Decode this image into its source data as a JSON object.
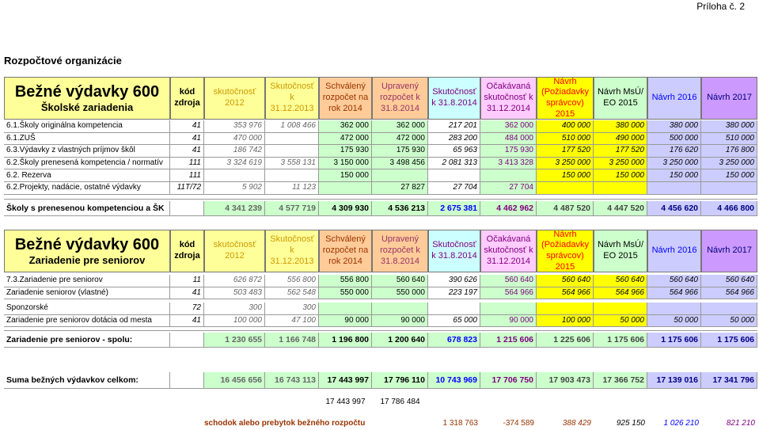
{
  "header": {
    "annex": "Príloha č. 2",
    "section": "Rozpočtové organizácie"
  },
  "columns": [
    "kód zdroja",
    "skutočnosť 2012",
    "Skutočnosť k 31.12.2013",
    "Schválený rozpočet na rok 2014",
    "Upravený rozpočet k 31.8.2014",
    "Skutočnosť k 31.8.2014",
    "Očakávaná skutočnosť k 31.12.2014",
    "Návrh (Požiadavky správcov) 2015",
    "Návrh MsÚ/ EO 2015",
    "Návrh 2016",
    "Návrh 2017"
  ],
  "tables": [
    {
      "title": "Bežné výdavky 600",
      "subtitle": "Školské zariadenia",
      "rows": [
        [
          "6.1.Školy originálna kompetencia",
          "41",
          "353 976",
          "1 008 466",
          "362 000",
          "362 000",
          "217 201",
          "362 000",
          "400 000",
          "380 000",
          "380 000",
          "380 000"
        ],
        [
          "6.1.ZUŠ",
          "41",
          "470 000",
          null,
          "472 000",
          "472 000",
          "283 200",
          "484 000",
          "510 000",
          "490 000",
          "500 000",
          "510 000"
        ],
        [
          "6.3.Výdavky z vlastných príjmov škôl",
          "41",
          "186 742",
          null,
          "175 930",
          "175 930",
          "65 963",
          "175 930",
          "177 520",
          "177 520",
          "176 620",
          "176 800"
        ],
        [
          "6.2.Školy prenesená kompetencia / normatív",
          "111",
          "3 324 619",
          "3 558 131",
          "3 150 000",
          "3 498 456",
          "2 081 313",
          "3 413 328",
          "3 250 000",
          "3 250 000",
          "3 250 000",
          "3 250 000"
        ],
        [
          "6.2. Rezerva",
          "111",
          null,
          null,
          "150 000",
          null,
          null,
          null,
          "150 000",
          "150 000",
          "150 000",
          "150 000"
        ],
        [
          "6.2.Projekty, nadácie, ostatné výdavky",
          "11T/72",
          "5 902",
          "11 123",
          null,
          "27 827",
          "27 704",
          "27 704",
          null,
          null,
          null,
          null
        ]
      ],
      "total": [
        "Školy s prenesenou kompetenciou a ŠK",
        null,
        "4 341 239",
        "4 577 719",
        "4 309 930",
        "4 536 213",
        "2 675 381",
        "4 462 962",
        "4 487 520",
        "4 447 520",
        "4 456 620",
        "4 466 800"
      ]
    },
    {
      "title": "Bežné výdavky 600",
      "subtitle": "Zariadenie pre seniorov",
      "rows": [
        [
          "7.3.Zariadenie pre seniorov",
          "11",
          "626 872",
          "556 800",
          "556 800",
          "560 640",
          "390 626",
          "560 640",
          "560 640",
          "560 640",
          "560 640",
          "560 640"
        ],
        [
          "Zariadenie seniorov (vlastné)",
          "41",
          "503 483",
          "562 548",
          "550 000",
          "550 000",
          "223 197",
          "564 966",
          "564 966",
          "564 966",
          "564 966",
          "564 966"
        ],
        [
          "Sponzorské",
          "72",
          "300",
          "300",
          null,
          null,
          null,
          null,
          null,
          null,
          null,
          null
        ],
        [
          "Zariadenie pre seniorov dotácia od mesta",
          "41",
          "100 000",
          "47 100",
          "90 000",
          "90 000",
          "65 000",
          "90 000",
          "100 000",
          "50 000",
          "50 000",
          "50 000"
        ]
      ],
      "total": [
        "Zariadenie pre seniorov - spolu:",
        null,
        "1 230 655",
        "1 166 748",
        "1 196 800",
        "1 200 640",
        "678 823",
        "1 215 606",
        "1 225 606",
        "1 175 606",
        "1 175 606",
        "1 175 606"
      ]
    }
  ],
  "summary": {
    "row": [
      "Suma bežných výdavkov celkom:",
      null,
      "16 456 656",
      "16 743 113",
      "17 443 997",
      "17 796 110",
      "10 743 969",
      "17 706 750",
      "17 903 473",
      "17 366 752",
      "17 139 016",
      "17 341 796"
    ],
    "notes": [
      "17 443 997",
      "17 786 484"
    ],
    "balance": {
      "label": "schodok alebo prebytok bežného rozpočtu",
      "values": [
        "1 318 763",
        "-374 589",
        "388 429",
        "925 150",
        "1 026 210",
        "821 210"
      ]
    }
  }
}
